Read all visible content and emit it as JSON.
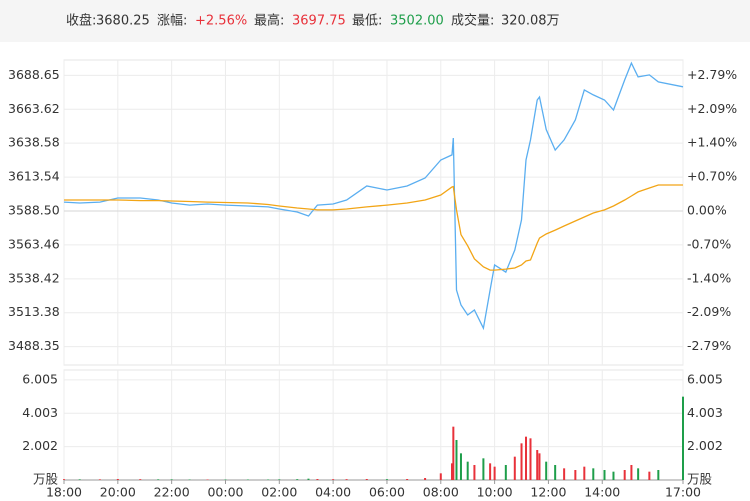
{
  "header": {
    "close_label": "收盘:",
    "close": "3680.25",
    "change_label": "涨幅:",
    "change": "+2.56%",
    "high_label": "最高:",
    "high": "3697.75",
    "low_label": "最低:",
    "low": "3502.00",
    "volume_label": "成交量:",
    "volume": "320.08万"
  },
  "chart_data": [
    {
      "type": "line",
      "up_color": "#e8313a",
      "down_color": "#1e9e4a",
      "flat_color": "#888888",
      "x": [
        "18:00",
        "18:35",
        "19:20",
        "20:00",
        "20:50",
        "21:30",
        "22:00",
        "22:40",
        "23:20",
        "00:00",
        "00:50",
        "01:35",
        "02:00",
        "02:40",
        "03:05",
        "03:25",
        "04:00",
        "04:30",
        "05:15",
        "06:00",
        "06:45",
        "07:25",
        "08:00",
        "08:25",
        "08:28",
        "08:35",
        "08:45",
        "09:00",
        "09:15",
        "09:35",
        "09:50",
        "10:00",
        "10:25",
        "10:45",
        "11:00",
        "11:10",
        "11:20",
        "11:35",
        "11:40",
        "11:55",
        "12:15",
        "12:35",
        "13:00",
        "13:20",
        "13:40",
        "14:05",
        "14:25",
        "14:50",
        "15:05",
        "15:20",
        "15:45",
        "16:05",
        "17:00"
      ],
      "xlim": [
        "18:00",
        "17:00"
      ],
      "xticks": [
        "18:00",
        "20:00",
        "22:00",
        "00:00",
        "02:00",
        "04:00",
        "06:00",
        "08:00",
        "10:00",
        "12:00",
        "14:00",
        "17:00"
      ],
      "series": [
        {
          "color": "#5aaef0",
          "values": [
            3595.1,
            3594.4,
            3595.1,
            3598.1,
            3598.1,
            3596.6,
            3594.4,
            3592.9,
            3593.7,
            3592.9,
            3592.2,
            3591.5,
            3590.0,
            3587.8,
            3584.8,
            3592.9,
            3593.7,
            3596.6,
            3607.0,
            3604.0,
            3607.0,
            3612.9,
            3626.2,
            3629.9,
            3642.4,
            3530.2,
            3519.1,
            3511.7,
            3515.4,
            3502.0,
            3530.2,
            3548.6,
            3543.4,
            3559.7,
            3581.9,
            3626.2,
            3641.0,
            3670.5,
            3672.7,
            3648.7,
            3633.5,
            3641.0,
            3655.7,
            3677.9,
            3674.2,
            3670.5,
            3663.1,
            3685.3,
            3697.7,
            3687.5,
            3689.0,
            3683.8,
            3680.2
          ]
        },
        {
          "color": "#f2a516",
          "values": [
            3596.6,
            3596.6,
            3596.6,
            3596.6,
            3596.2,
            3596.2,
            3595.9,
            3595.5,
            3595.1,
            3594.8,
            3594.4,
            3593.3,
            3592.2,
            3590.7,
            3590.0,
            3589.3,
            3589.3,
            3590.0,
            3591.5,
            3592.9,
            3594.4,
            3596.6,
            3600.3,
            3606.2,
            3606.5,
            3589.3,
            3571.0,
            3562.8,
            3553.2,
            3547.3,
            3544.9,
            3544.9,
            3545.6,
            3546.4,
            3548.6,
            3551.6,
            3552.3,
            3564.8,
            3568.5,
            3571.5,
            3574.4,
            3577.4,
            3581.1,
            3584.1,
            3587.0,
            3589.3,
            3592.2,
            3596.6,
            3599.6,
            3602.6,
            3605.5,
            3607.7,
            3607.7
          ]
        }
      ],
      "ylim": [
        3474.8,
        3700.0
      ],
      "yticks": [
        3688.65,
        3663.62,
        3638.58,
        3613.54,
        {
          "value": 3588.5,
          "label": "3588.50"
        },
        3563.46,
        3538.42,
        3513.38,
        3488.35
      ],
      "y2lim": [
        -3.169,
        3.107
      ],
      "y2ticks": [
        {
          "value": 2.79,
          "label": "+2.79%"
        },
        {
          "value": 2.09,
          "label": "+2.09%"
        },
        {
          "value": 1.4,
          "label": "+1.40%"
        },
        {
          "value": 0.7,
          "label": "+0.70%"
        },
        {
          "value": 0,
          "label": "0.00%"
        },
        {
          "value": -0.7,
          "label": "-0.70%"
        },
        {
          "value": -1.4,
          "label": "-1.40%"
        },
        {
          "value": -2.09,
          "label": "-2.09%"
        },
        {
          "value": -2.79,
          "label": "-2.79%"
        }
      ],
      "grid": true
    },
    {
      "type": "bar",
      "up_color": "#e8313a",
      "down_color": "#1e9e4a",
      "x": [
        "18:00",
        "18:35",
        "19:20",
        "20:00",
        "20:50",
        "21:30",
        "22:00",
        "22:40",
        "23:20",
        "00:00",
        "00:50",
        "01:35",
        "02:00",
        "02:40",
        "03:05",
        "03:25",
        "04:00",
        "04:30",
        "05:15",
        "06:00",
        "06:45",
        "07:25",
        "08:00",
        "08:25",
        "08:28",
        "08:35",
        "08:45",
        "09:00",
        "09:15",
        "09:35",
        "09:50",
        "10:00",
        "10:25",
        "10:45",
        "11:00",
        "11:10",
        "11:20",
        "11:35",
        "11:40",
        "11:55",
        "12:15",
        "12:35",
        "13:00",
        "13:20",
        "13:40",
        "14:05",
        "14:25",
        "14:50",
        "15:05",
        "15:20",
        "15:45",
        "16:05",
        "17:00"
      ],
      "xlim": [
        "18:00",
        "17:00"
      ],
      "xticks": [
        "18:00",
        "20:00",
        "22:00",
        "00:00",
        "02:00",
        "04:00",
        "06:00",
        "08:00",
        "10:00",
        "12:00",
        "14:00",
        "17:00"
      ],
      "values": [
        0.05,
        0.04,
        0.04,
        0.06,
        0.05,
        0.04,
        0.04,
        0.03,
        0.03,
        0.03,
        0.03,
        0.03,
        0.04,
        0.05,
        0.08,
        0.06,
        0.05,
        0.05,
        0.06,
        0.05,
        0.06,
        0.12,
        0.4,
        1.0,
        3.2,
        2.4,
        1.6,
        1.1,
        0.9,
        1.3,
        1.0,
        0.8,
        0.9,
        1.4,
        2.2,
        2.6,
        2.5,
        1.8,
        1.6,
        1.1,
        0.9,
        0.7,
        0.6,
        0.8,
        0.7,
        0.6,
        0.5,
        0.6,
        0.9,
        0.7,
        0.5,
        0.6,
        5.0
      ],
      "ylim": [
        0,
        6.6
      ],
      "yticks": [
        {
          "value": 0,
          "label": "万股"
        },
        2.002,
        4.003,
        6.005
      ],
      "grid": true
    }
  ]
}
